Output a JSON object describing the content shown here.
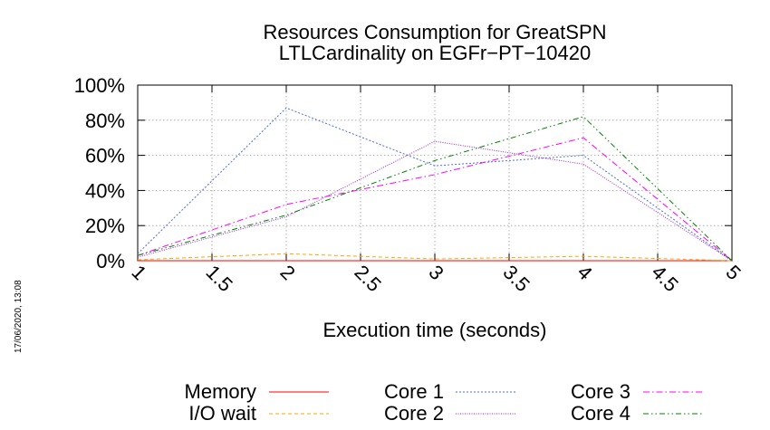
{
  "timestamp": "17/06/2020, 13:08",
  "chart_data": {
    "type": "line",
    "title_line1": "Resources Consumption for GreatSPN",
    "title_line2": "LTLCardinality on EGFr−PT−10420",
    "xlabel": "Execution time (seconds)",
    "ylabel": "",
    "xlim": [
      1,
      5
    ],
    "ylim": [
      0,
      100
    ],
    "xticks": [
      "1",
      "1.5",
      "2",
      "2.5",
      "3",
      "3.5",
      "4",
      "4.5",
      "5"
    ],
    "yticks": [
      "0%",
      "20%",
      "40%",
      "60%",
      "80%",
      "100%"
    ],
    "grid": true,
    "legend_position": "bottom",
    "series": [
      {
        "name": "Memory",
        "color": "#ff0000",
        "dash": "solid",
        "x": [
          1,
          2,
          3,
          4,
          5
        ],
        "values": [
          0,
          0,
          0,
          0,
          0
        ]
      },
      {
        "name": "I/O wait",
        "color": "#ffa500",
        "dash": "dashed",
        "x": [
          1,
          2,
          3,
          4,
          5
        ],
        "values": [
          0.5,
          4,
          1,
          2.5,
          0
        ]
      },
      {
        "name": "Core 1",
        "color": "#4a6fd8",
        "dash": "dotted",
        "x": [
          1,
          2,
          3,
          4,
          5
        ],
        "values": [
          4,
          87,
          54,
          60,
          0
        ]
      },
      {
        "name": "Core 2",
        "color": "#9a1fd6",
        "dash": "fine-dotted",
        "x": [
          1,
          2,
          3,
          4,
          5
        ],
        "values": [
          2,
          25,
          68,
          55,
          0
        ]
      },
      {
        "name": "Core 3",
        "color": "#ff00ff",
        "dash": "dash-dot",
        "x": [
          1,
          2,
          3,
          4,
          5
        ],
        "values": [
          3,
          32,
          49,
          70,
          0
        ]
      },
      {
        "name": "Core 4",
        "color": "#008000",
        "dash": "dash-dot-dot",
        "x": [
          1,
          2,
          3,
          4,
          5
        ],
        "values": [
          3,
          26,
          57,
          82,
          0
        ]
      }
    ]
  }
}
